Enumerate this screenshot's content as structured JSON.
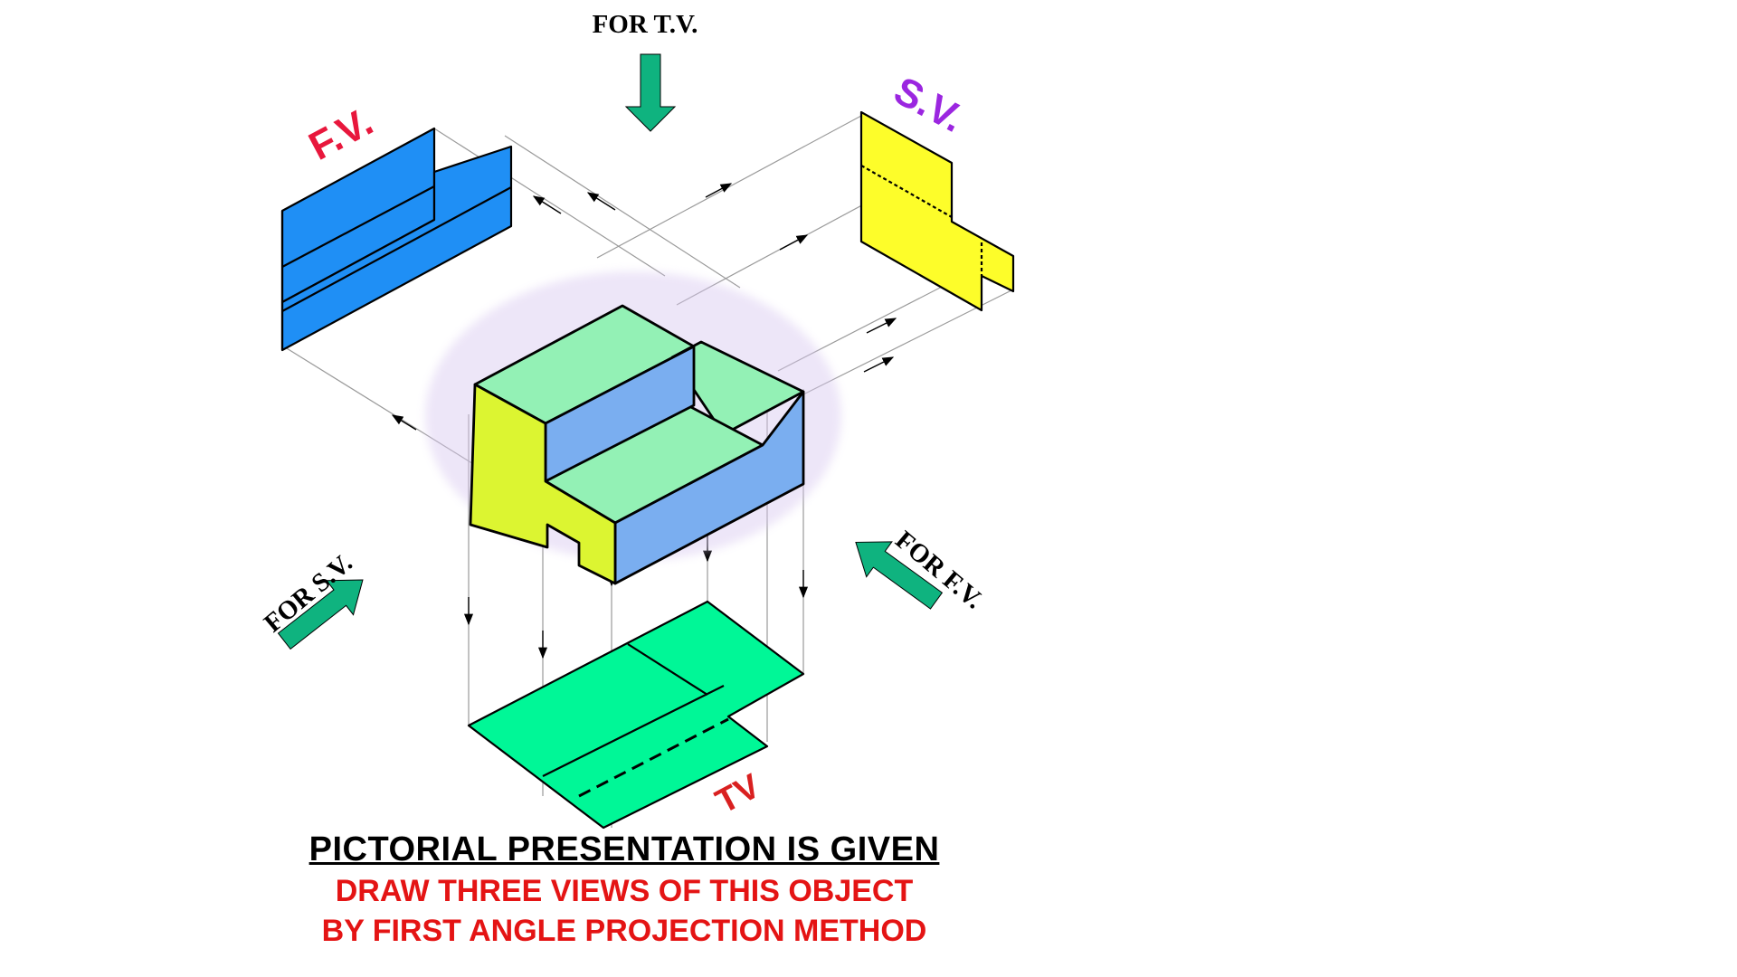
{
  "labels": {
    "for_tv": "FOR T.V.",
    "for_sv": "FOR S.V.",
    "for_fv": "FOR F.V.",
    "fv": "F.V.",
    "sv": "S.V.",
    "tv": "TV"
  },
  "caption": {
    "line1": "PICTORIAL PRESENTATION IS GIVEN",
    "line2": "DRAW THREE VIEWS OF THIS OBJECT",
    "line3": "BY FIRST ANGLE PROJECTION METHOD"
  },
  "colors": {
    "front_view": "#1f8ff5",
    "side_view": "#fdfd2a",
    "top_view": "#00f797",
    "object_top": "#93f1b5",
    "object_right": "#7aaef0",
    "object_left": "#dcf531",
    "direction_arrow": "#0fb37f",
    "fv_label": "#e8173c",
    "sv_label": "#9b26e0",
    "tv_label": "#d92020",
    "caption_red": "#e41414"
  }
}
